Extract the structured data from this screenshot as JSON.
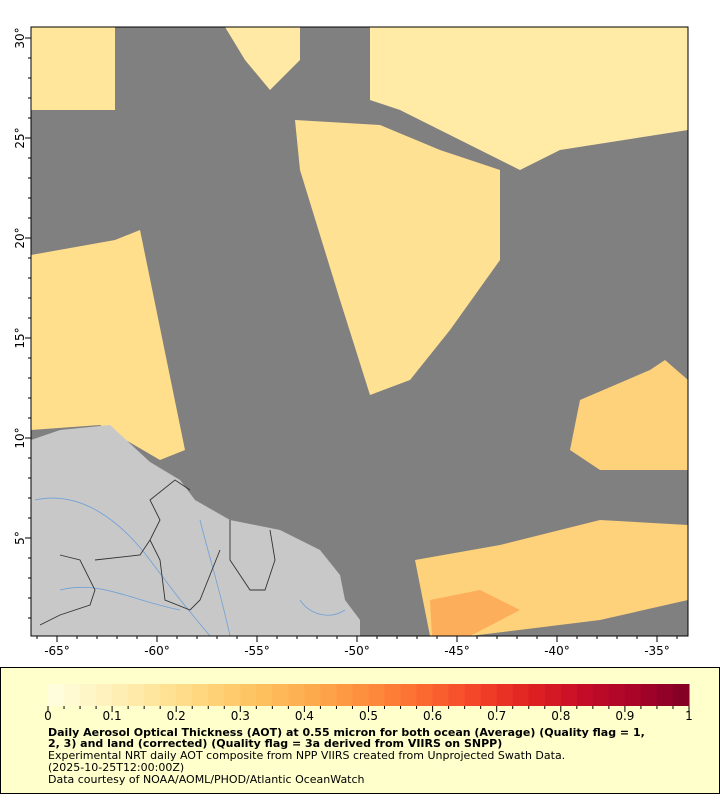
{
  "map": {
    "lon_range": [
      -66.3,
      -33.45
    ],
    "lat_range": [
      0.1,
      30.55
    ],
    "x_ticks": [
      {
        "value": -65,
        "label": "-65°"
      },
      {
        "value": -60,
        "label": "-60°"
      },
      {
        "value": -55,
        "label": "-55°"
      },
      {
        "value": -50,
        "label": "-50°"
      },
      {
        "value": -45,
        "label": "-45°"
      },
      {
        "value": -40,
        "label": "-40°"
      },
      {
        "value": -35,
        "label": "-35°"
      }
    ],
    "y_ticks": [
      {
        "value": 5,
        "label": "5°"
      },
      {
        "value": 10,
        "label": "10°"
      },
      {
        "value": 15,
        "label": "15°"
      },
      {
        "value": 20,
        "label": "20°"
      },
      {
        "value": 25,
        "label": "25°"
      },
      {
        "value": 30,
        "label": "30°"
      }
    ],
    "colors": {
      "no_data": "#808080",
      "land": "#c8c8c8",
      "rivers": "#6fa0d8",
      "borders": "#333333",
      "states": "#888888"
    }
  },
  "colorbar": {
    "range": [
      0,
      1
    ],
    "ticks": [
      "0",
      "0.1",
      "0.2",
      "0.3",
      "0.4",
      "0.5",
      "0.6",
      "0.7",
      "0.8",
      "0.9",
      "1"
    ],
    "colors": [
      "#ffffe0",
      "#fff3c0",
      "#ffe59c",
      "#ffd47a",
      "#fec05e",
      "#fda94c",
      "#fd8c3c",
      "#fc6b30",
      "#f44529",
      "#e02222",
      "#c60d28",
      "#a80329",
      "#800026"
    ]
  },
  "legend": {
    "title_line1": "Daily Aerosol Optical Thickness (AOT) at 0.55 micron for both ocean (Average) (Quality flag = 1,",
    "title_line2": "2, 3) and land (corrected) (Quality flag = 3a derived from VIIRS on SNPP)",
    "subtitle": "Experimental NRT daily AOT composite from NPP VIIRS created from Unprojected Swath Data.",
    "time": "(2025-10-25T12:00:00Z)",
    "credit": "Data courtesy of NOAA/AOML/PHOD/Atlantic OceanWatch"
  }
}
